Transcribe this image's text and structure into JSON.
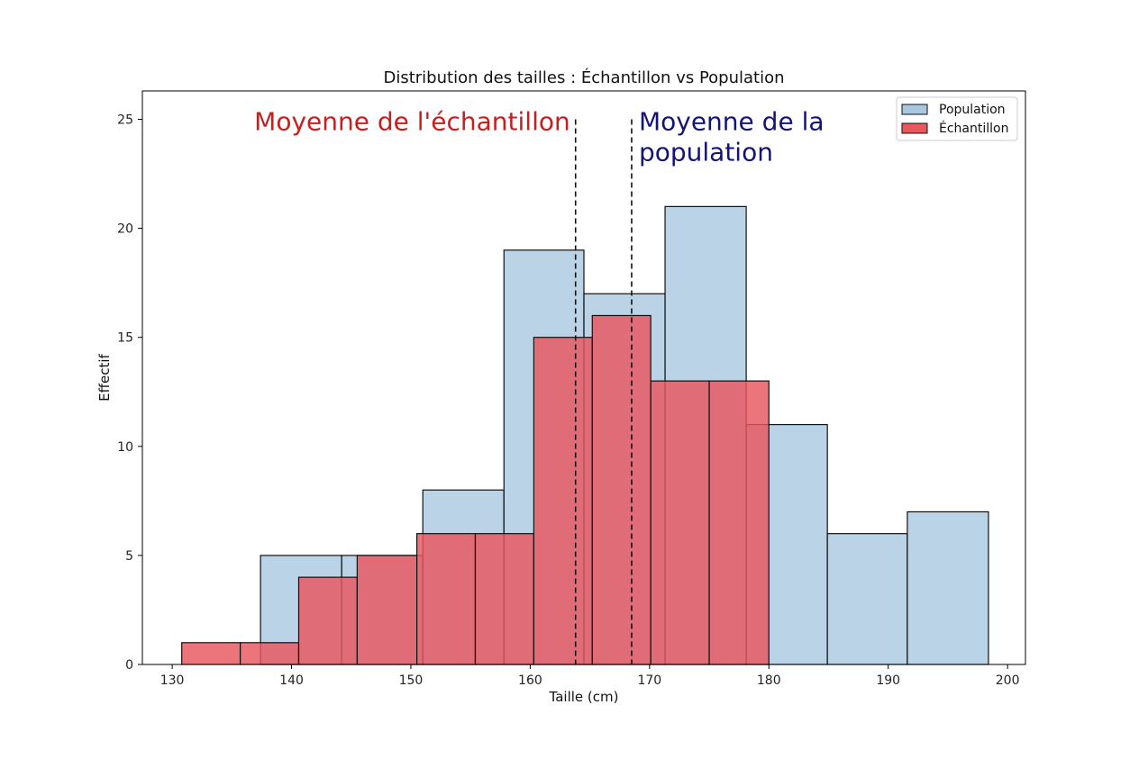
{
  "chart_data": {
    "type": "bar",
    "subtype": "overlaid-histogram",
    "title": "Distribution des tailles : Échantillon vs Population",
    "xlabel": "Taille (cm)",
    "ylabel": "Effectif",
    "xlim": [
      127.5,
      201.5
    ],
    "ylim": [
      0,
      26.3
    ],
    "xticks": [
      130,
      140,
      150,
      160,
      170,
      180,
      190,
      200
    ],
    "yticks": [
      0,
      5,
      10,
      15,
      20,
      25
    ],
    "grid": false,
    "legend_position": "top-right",
    "series": [
      {
        "name": "Population",
        "color": "#a9c8e0",
        "edge_color": "#111111",
        "bins": [
          {
            "start": 137.4,
            "end": 144.2,
            "count": 5
          },
          {
            "start": 144.2,
            "end": 151.0,
            "count": 5
          },
          {
            "start": 151.0,
            "end": 157.8,
            "count": 8
          },
          {
            "start": 157.8,
            "end": 164.5,
            "count": 19
          },
          {
            "start": 164.5,
            "end": 171.3,
            "count": 17
          },
          {
            "start": 171.3,
            "end": 178.1,
            "count": 21
          },
          {
            "start": 178.1,
            "end": 184.9,
            "count": 11
          },
          {
            "start": 184.9,
            "end": 191.6,
            "count": 6
          },
          {
            "start": 191.6,
            "end": 198.4,
            "count": 7
          }
        ]
      },
      {
        "name": "Échantillon",
        "color": "#e8565e",
        "edge_color": "#111111",
        "bins": [
          {
            "start": 130.8,
            "end": 135.7,
            "count": 1
          },
          {
            "start": 135.7,
            "end": 140.6,
            "count": 1
          },
          {
            "start": 140.6,
            "end": 145.5,
            "count": 4
          },
          {
            "start": 145.5,
            "end": 150.5,
            "count": 5
          },
          {
            "start": 150.5,
            "end": 155.4,
            "count": 6
          },
          {
            "start": 155.4,
            "end": 160.3,
            "count": 6
          },
          {
            "start": 160.3,
            "end": 165.2,
            "count": 15
          },
          {
            "start": 165.2,
            "end": 170.1,
            "count": 16
          },
          {
            "start": 170.1,
            "end": 175.0,
            "count": 13
          },
          {
            "start": 175.0,
            "end": 180.0,
            "count": 13
          }
        ]
      }
    ],
    "vlines": [
      {
        "x": 163.8,
        "style": "dashed",
        "label": "Moyenne de l'échantillon",
        "label_color": "#c81e1e"
      },
      {
        "x": 168.5,
        "style": "dashed",
        "label": [
          "Moyenne de la",
          "population"
        ],
        "label_color": "#141478"
      }
    ]
  }
}
